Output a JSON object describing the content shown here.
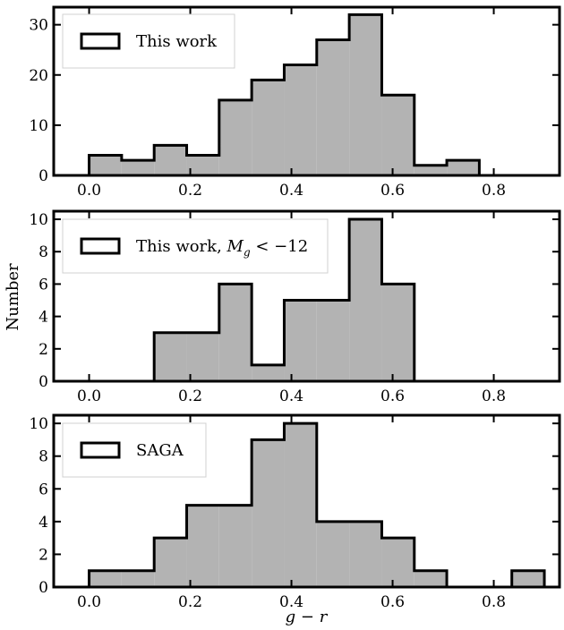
{
  "ylabel": "Number",
  "xlabel": "g − r",
  "chart_data": [
    {
      "type": "bar",
      "legend": "This work",
      "bin_edges": [
        0.0,
        0.0643,
        0.1286,
        0.1929,
        0.2571,
        0.3214,
        0.3857,
        0.45,
        0.5143,
        0.5786,
        0.6429,
        0.7071,
        0.7714
      ],
      "values": [
        4,
        3,
        6,
        4,
        15,
        19,
        22,
        27,
        32,
        16,
        2,
        3
      ],
      "xlim": [
        -0.07,
        0.93
      ],
      "ylim": [
        0,
        33.5
      ],
      "xticks": [
        "0.0",
        "0.2",
        "0.4",
        "0.6",
        "0.8"
      ],
      "yticks": [
        "0",
        "10",
        "20",
        "30"
      ],
      "ytick_values": [
        0,
        10,
        20,
        30
      ],
      "fill": "#b3b3b3",
      "edge": "#000000"
    },
    {
      "type": "bar",
      "legend": "This work, M_g < −12",
      "legend_parts": {
        "prefix": "This work, ",
        "var": "M",
        "sub": "g",
        "rel": " < −12"
      },
      "bin_edges": [
        0.1286,
        0.1929,
        0.2571,
        0.3214,
        0.3857,
        0.45,
        0.5143,
        0.5786,
        0.6429
      ],
      "values": [
        3,
        3,
        6,
        1,
        5,
        5,
        10,
        6
      ],
      "xlim": [
        -0.07,
        0.93
      ],
      "ylim": [
        0,
        10.5
      ],
      "xticks": [
        "0.0",
        "0.2",
        "0.4",
        "0.6",
        "0.8"
      ],
      "yticks": [
        "0",
        "2",
        "4",
        "6",
        "8",
        "10"
      ],
      "ytick_values": [
        0,
        2,
        4,
        6,
        8,
        10
      ],
      "fill": "#b3b3b3",
      "edge": "#000000"
    },
    {
      "type": "bar",
      "legend": "SAGA",
      "bin_edges": [
        0.0,
        0.0643,
        0.1286,
        0.1929,
        0.2571,
        0.3214,
        0.3857,
        0.45,
        0.5143,
        0.5786,
        0.6429,
        0.7071,
        0.7714,
        0.8357,
        0.9
      ],
      "values": [
        1,
        1,
        3,
        5,
        5,
        9,
        10,
        4,
        4,
        3,
        1,
        0,
        0,
        1
      ],
      "xlim": [
        -0.07,
        0.93
      ],
      "ylim": [
        0,
        10.5
      ],
      "xticks": [
        "0.0",
        "0.2",
        "0.4",
        "0.6",
        "0.8"
      ],
      "yticks": [
        "0",
        "2",
        "4",
        "6",
        "8",
        "10"
      ],
      "ytick_values": [
        0,
        2,
        4,
        6,
        8,
        10
      ],
      "fill": "#b3b3b3",
      "edge": "#000000"
    }
  ]
}
